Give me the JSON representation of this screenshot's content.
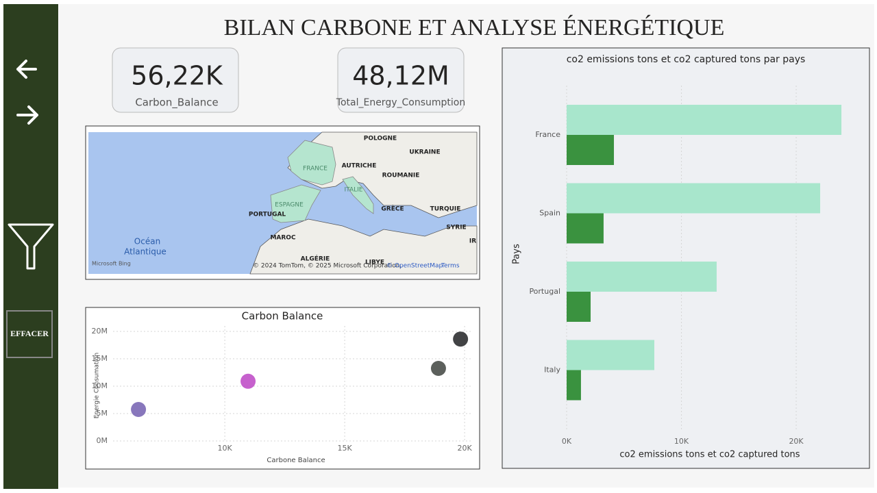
{
  "title": "BILAN CARBONE ET ANALYSE ÉNERGÉTIQUE",
  "sidebar": {
    "clear_button": "EFFACER"
  },
  "kpis": [
    {
      "value": "56,22K",
      "label": "Carbon_Balance"
    },
    {
      "value": "48,12M",
      "label": "Total_Energy_Consumption"
    }
  ],
  "map": {
    "labels": [
      "POLOGNE",
      "UKRAINE",
      "FRANCE",
      "AUTRICHE",
      "ROUMANIE",
      "ITALIE",
      "ESPAGNE",
      "PORTUGAL",
      "GRÈCE",
      "TURQUIE",
      "SYRIE",
      "IR",
      "MAROC",
      "Océan",
      "Atlantique",
      "ALGÉRIE",
      "LIBYE"
    ],
    "provider": "Microsoft Bing",
    "attribution": "© 2024 TomTom, © 2025 Microsoft Corporation,",
    "osm": "© OpenStreetMap",
    "terms": "Terms"
  },
  "chart_data": [
    {
      "type": "scatter",
      "title": "Carbon Balance",
      "x_label": "Carbone Balance",
      "y_label": "Energie Consumation",
      "x": [
        6400,
        10970,
        18910,
        19830
      ],
      "values": [
        5750000,
        10900000,
        13250000,
        18600000
      ],
      "colors": [
        "#7b68b5",
        "#c050c8",
        "#4a4f4a",
        "#2d2f31"
      ],
      "xlim": [
        5340,
        20340
      ],
      "xticks": [
        {
          "value": 10000,
          "label": "10K"
        },
        {
          "value": 15000,
          "label": "15K"
        },
        {
          "value": 20000,
          "label": "20K"
        }
      ],
      "ylim": [
        0,
        21000000
      ],
      "yticks": [
        {
          "value": 0,
          "label": "0M"
        },
        {
          "value": 5000000,
          "label": "5M"
        },
        {
          "value": 10000000,
          "label": "10M"
        },
        {
          "value": 15000000,
          "label": "15M"
        },
        {
          "value": 20000000,
          "label": "20M"
        }
      ],
      "grid": true
    },
    {
      "type": "hbar",
      "title": "co2 emissions tons et co2 captured tons par pays",
      "x_label": "co2 emissions tons et co2 captured tons",
      "y_label": "Pays",
      "categories": [
        "France",
        "Spain",
        "Portugal",
        "Italy"
      ],
      "series": [
        {
          "color": "#a8e6cc",
          "values": [
            23940,
            22090,
            13070,
            7640
          ]
        },
        {
          "color": "#3a923f",
          "values": [
            4120,
            3220,
            2090,
            1250
          ]
        }
      ],
      "xlim": [
        0,
        25250
      ],
      "xticks": [
        {
          "value": 0,
          "label": "0K"
        },
        {
          "value": 10000,
          "label": "10K"
        },
        {
          "value": 20000,
          "label": "20K"
        }
      ],
      "grid": true
    }
  ]
}
